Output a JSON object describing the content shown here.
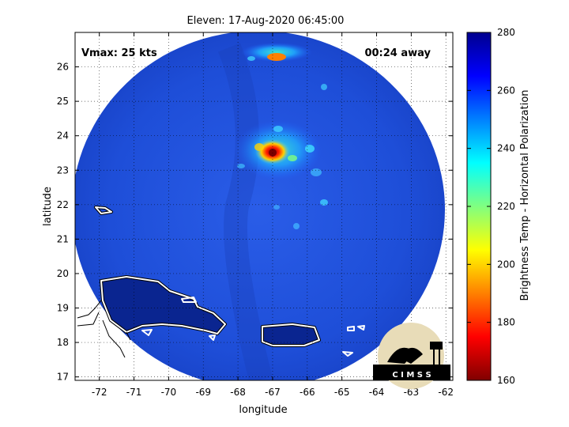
{
  "title": "Eleven: 17-Aug-2020 06:45:00",
  "vmax_label": "Vmax: 25 kts",
  "time_label": "00:24 away",
  "xlabel": "longitude",
  "ylabel": "latitude",
  "colorbar": {
    "label": "Brightness Temp - Horizontal Polarization",
    "range": [
      160,
      280
    ],
    "ticks": [
      "160",
      "180",
      "200",
      "220",
      "240",
      "260",
      "280"
    ],
    "colors": [
      "#800000",
      "#ff0000",
      "#ff8000",
      "#ffff00",
      "#80ff80",
      "#00ffff",
      "#0080ff",
      "#0000ff",
      "#00008f"
    ]
  },
  "map": {
    "lon_range": [
      -72.7,
      -61.8
    ],
    "lat_range": [
      16.9,
      27.0
    ],
    "x_ticks": [
      "-72",
      "-71",
      "-70",
      "-69",
      "-68",
      "-67",
      "-66",
      "-65",
      "-64",
      "-63",
      "-62"
    ],
    "y_ticks": [
      "17",
      "18",
      "19",
      "20",
      "21",
      "22",
      "23",
      "24",
      "25",
      "26"
    ],
    "swath_fill": "#1f4fe0",
    "storm_center": {
      "lon": -67.0,
      "lat": 23.5
    }
  },
  "logo": {
    "text": "C I M S S"
  }
}
